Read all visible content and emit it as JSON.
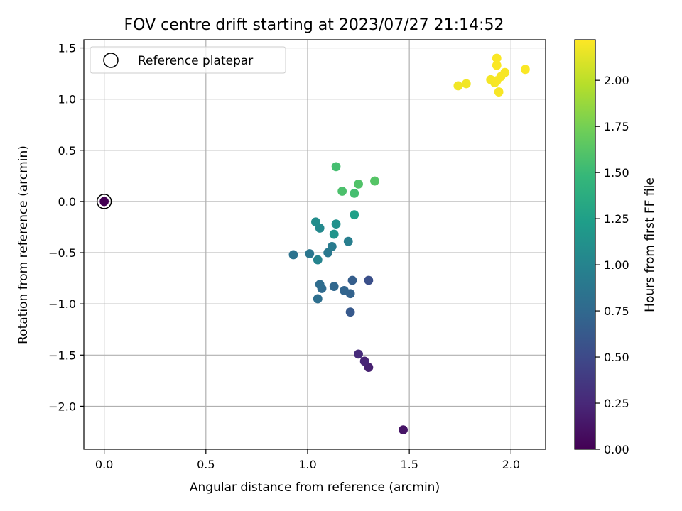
{
  "chart_data": {
    "type": "scatter",
    "title": "FOV centre drift starting at 2023/07/27 21:14:52",
    "xlabel": "Angular distance from reference (arcmin)",
    "ylabel": "Rotation from reference (arcmin)",
    "xlim": [
      -0.1,
      2.17
    ],
    "ylim": [
      -2.42,
      1.58
    ],
    "xticks": [
      0.0,
      0.5,
      1.0,
      1.5,
      2.0
    ],
    "xtick_labels": [
      "0.0",
      "0.5",
      "1.0",
      "1.5",
      "2.0"
    ],
    "yticks": [
      1.5,
      1.0,
      0.5,
      0.0,
      -0.5,
      -1.0,
      -1.5,
      -2.0
    ],
    "ytick_labels": [
      "1.5",
      "1.0",
      "0.5",
      "0.0",
      "−0.5",
      "−1.0",
      "−1.5",
      "−2.0"
    ],
    "grid": true,
    "legend": {
      "placement": "upper-left",
      "entries": [
        "Reference platepar"
      ]
    },
    "reference_point": {
      "x": 0.0,
      "y": 0.0,
      "hours": 0.0,
      "marker": "hollow-circle"
    },
    "colorbar": {
      "label": "Hours from first FF file",
      "colormap": "viridis",
      "range": [
        0.0,
        2.22
      ],
      "ticks": [
        0.0,
        0.25,
        0.5,
        0.75,
        1.0,
        1.25,
        1.5,
        1.75,
        2.0
      ],
      "tick_labels": [
        "0.00",
        "0.25",
        "0.50",
        "0.75",
        "1.00",
        "1.25",
        "1.50",
        "1.75",
        "2.00"
      ],
      "colors": [
        "#440154",
        "#482878",
        "#3e4989",
        "#31688e",
        "#26828e",
        "#1f9e89",
        "#35b779",
        "#6ece58",
        "#b5de2b",
        "#fde725"
      ]
    },
    "points": [
      {
        "x": 1.47,
        "y": -2.23,
        "hours": 0.12
      },
      {
        "x": 1.3,
        "y": -1.62,
        "hours": 0.2
      },
      {
        "x": 1.28,
        "y": -1.56,
        "hours": 0.23
      },
      {
        "x": 1.25,
        "y": -1.49,
        "hours": 0.27
      },
      {
        "x": 1.3,
        "y": -0.77,
        "hours": 0.55
      },
      {
        "x": 1.21,
        "y": -1.08,
        "hours": 0.62
      },
      {
        "x": 1.22,
        "y": -0.77,
        "hours": 0.66
      },
      {
        "x": 1.21,
        "y": -0.9,
        "hours": 0.7
      },
      {
        "x": 1.18,
        "y": -0.87,
        "hours": 0.72
      },
      {
        "x": 1.13,
        "y": -0.83,
        "hours": 0.74
      },
      {
        "x": 1.07,
        "y": -0.85,
        "hours": 0.77
      },
      {
        "x": 1.06,
        "y": -0.81,
        "hours": 0.79
      },
      {
        "x": 1.05,
        "y": -0.95,
        "hours": 0.81
      },
      {
        "x": 0.93,
        "y": -0.52,
        "hours": 0.84
      },
      {
        "x": 1.01,
        "y": -0.51,
        "hours": 0.87
      },
      {
        "x": 1.1,
        "y": -0.5,
        "hours": 0.89
      },
      {
        "x": 1.12,
        "y": -0.44,
        "hours": 0.92
      },
      {
        "x": 1.2,
        "y": -0.39,
        "hours": 0.95
      },
      {
        "x": 1.05,
        "y": -0.57,
        "hours": 1.0
      },
      {
        "x": 1.06,
        "y": -0.26,
        "hours": 1.05
      },
      {
        "x": 1.04,
        "y": -0.2,
        "hours": 1.08
      },
      {
        "x": 1.14,
        "y": -0.22,
        "hours": 1.12
      },
      {
        "x": 1.13,
        "y": -0.32,
        "hours": 1.15
      },
      {
        "x": 1.23,
        "y": -0.13,
        "hours": 1.25
      },
      {
        "x": 1.23,
        "y": 0.08,
        "hours": 1.55
      },
      {
        "x": 1.17,
        "y": 0.1,
        "hours": 1.58
      },
      {
        "x": 1.25,
        "y": 0.17,
        "hours": 1.6
      },
      {
        "x": 1.33,
        "y": 0.2,
        "hours": 1.62
      },
      {
        "x": 1.14,
        "y": 0.34,
        "hours": 1.55
      },
      {
        "x": 1.74,
        "y": 1.13,
        "hours": 2.18
      },
      {
        "x": 1.78,
        "y": 1.15,
        "hours": 2.18
      },
      {
        "x": 1.9,
        "y": 1.19,
        "hours": 2.19
      },
      {
        "x": 1.92,
        "y": 1.16,
        "hours": 2.19
      },
      {
        "x": 1.93,
        "y": 1.18,
        "hours": 2.2
      },
      {
        "x": 1.95,
        "y": 1.22,
        "hours": 2.2
      },
      {
        "x": 1.97,
        "y": 1.26,
        "hours": 2.2
      },
      {
        "x": 1.94,
        "y": 1.07,
        "hours": 2.2
      },
      {
        "x": 1.93,
        "y": 1.33,
        "hours": 2.21
      },
      {
        "x": 1.93,
        "y": 1.4,
        "hours": 2.21
      },
      {
        "x": 2.07,
        "y": 1.29,
        "hours": 2.21
      }
    ]
  }
}
